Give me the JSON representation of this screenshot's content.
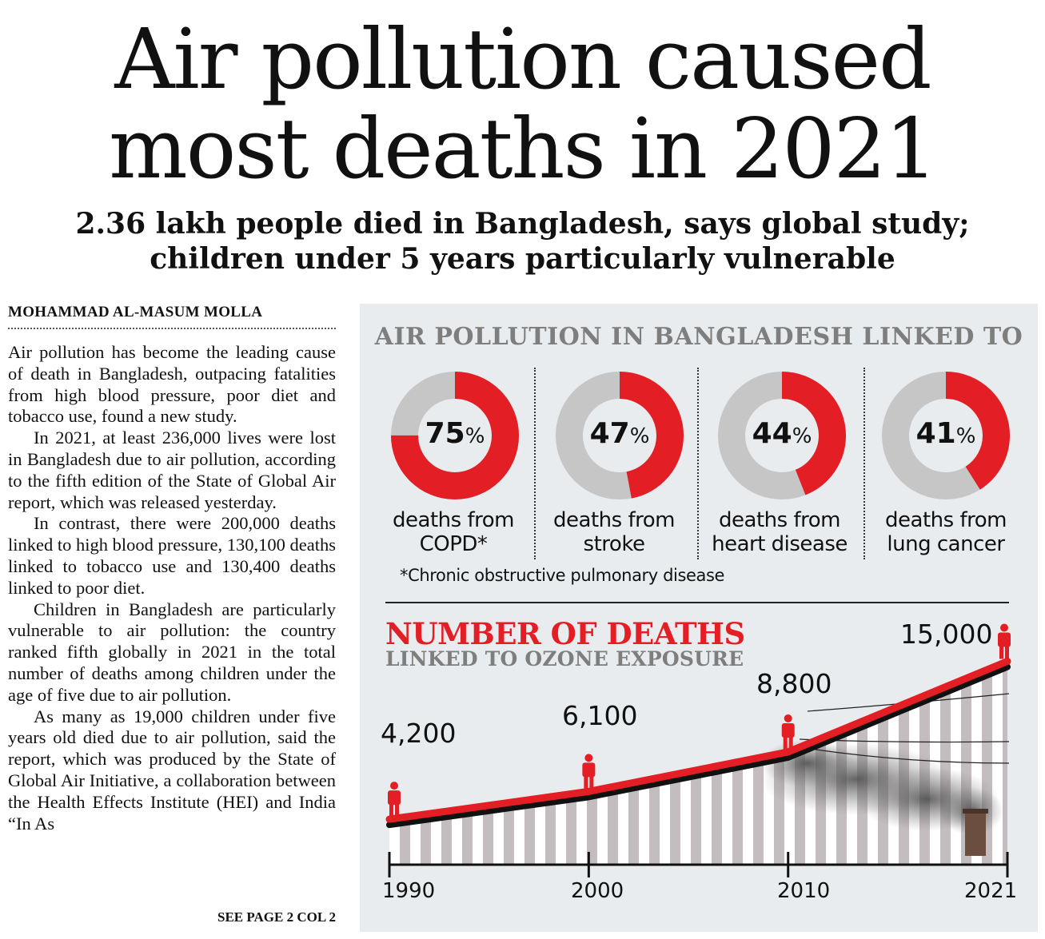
{
  "headline": {
    "line1": "Air pollution caused",
    "line2": "most deaths in 2021"
  },
  "subhead": {
    "line1": "2.36 lakh people died in Bangladesh, says global study;",
    "line2": "children under 5 years particularly vulnerable"
  },
  "byline": "MOHAMMAD AL-MASUM MOLLA",
  "article": {
    "p1": "Air pollution has become the leading cause of death in Bangladesh, outpacing fatalities from high blood pressure, poor diet and tobacco use, found a new study.",
    "p2": "In 2021, at least 236,000 lives were lost in Bangladesh due to air pollution, according to the fifth edition of the State of Global Air report, which was released yesterday.",
    "p3": "In contrast, there were 200,000 deaths linked to high blood pressure, 130,100 deaths linked to tobacco use and 130,400 deaths linked to poor diet.",
    "p4": "Children in Bangladesh are particularly vulnerable to air pollution: the country ranked fifth globally in 2021 in the total number of deaths among children under the age of five due to air pollution.",
    "p5": "As many as 19,000 children under five years old died due to air pollution, said the report, which was produced by the State of Global Air Initiative, a collaboration between the Health Effects Institute (HEI) and India “In As",
    "see_page": "SEE PAGE 2 COL 2"
  },
  "infographic": {
    "title": "AIR POLLUTION IN BANGLADESH LINKED TO",
    "footnote": "*Chronic obstructive pulmonary disease",
    "pct_sign": "%",
    "colors": {
      "accent": "#e31e24",
      "track": "#c6c6c6",
      "panel": "#e8ecee",
      "muted": "#7e7e7e"
    },
    "causes": [
      {
        "value": 75,
        "label_line1": "deaths from",
        "label_line2": "COPD*"
      },
      {
        "value": 47,
        "label_line1": "deaths from",
        "label_line2": "stroke"
      },
      {
        "value": 44,
        "label_line1": "deaths from",
        "label_line2": "heart disease"
      },
      {
        "value": 41,
        "label_line1": "deaths from",
        "label_line2": "lung cancer"
      }
    ],
    "deaths_title": "NUMBER OF DEATHS",
    "deaths_subtitle": "LINKED TO OZONE EXPOSURE"
  },
  "chart_data": [
    {
      "type": "pie",
      "title": "AIR POLLUTION IN BANGLADESH LINKED TO",
      "categories": [
        "deaths from COPD*",
        "deaths from stroke",
        "deaths from heart disease",
        "deaths from lung cancer"
      ],
      "values": [
        75,
        47,
        44,
        41
      ],
      "unit": "%"
    },
    {
      "type": "line",
      "title": "NUMBER OF DEATHS",
      "subtitle": "LINKED TO OZONE EXPOSURE",
      "x": [
        1990,
        2000,
        2010,
        2021
      ],
      "x_labels": [
        "1990",
        "2000",
        "2010",
        "2021"
      ],
      "values": [
        4200,
        6100,
        8800,
        15000
      ],
      "value_labels": [
        "4,200",
        "6,100",
        "8,800",
        "15,000"
      ]
    }
  ]
}
